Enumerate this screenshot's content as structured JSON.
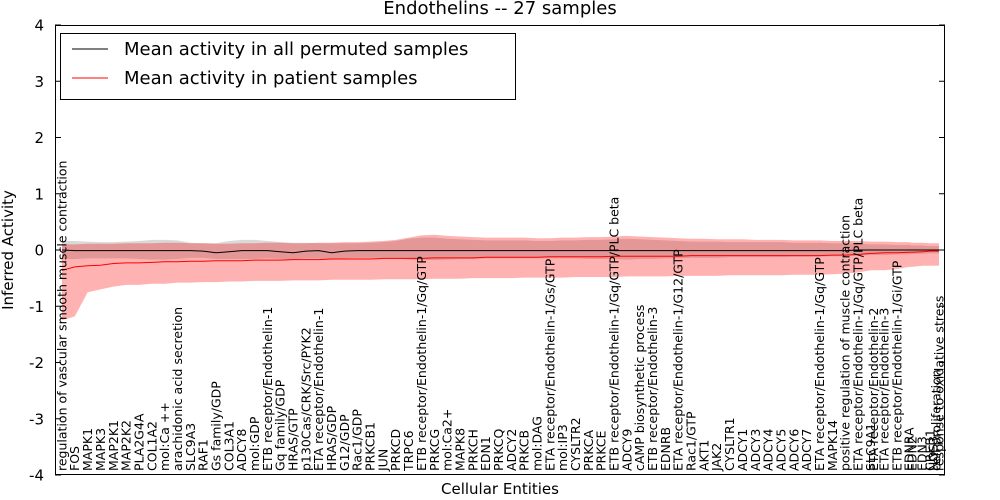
{
  "chart_data": {
    "type": "line",
    "title": "Endothelins -- 27 samples",
    "xlabel": "Cellular Entities",
    "ylabel": "Inferred Activity",
    "ylim": [
      -4,
      4
    ],
    "yticks": [
      4,
      3,
      2,
      1,
      0,
      -1,
      -2,
      -3,
      -4
    ],
    "grid": false,
    "legend": "upper-left",
    "categories": [
      "regulation of vascular smooth muscle contraction",
      "FOS",
      "MAPK1",
      "MAPK3",
      "MAP2K1",
      "MAP2K2",
      "PLA2G4A",
      "COL1A2",
      "mol:Ca ++",
      "arachidonic acid secretion",
      "SLC9A3",
      "RAF1",
      "Gs family/GDP",
      "COL3A1",
      "ADCY8",
      "mol:GDP",
      "ETB receptor/Endothelin-1",
      "Gq family/GDP",
      "HRAS/GTP",
      "p130Cas/CRK/Src/PYK2",
      "ETA receptor/Endothelin-1",
      "HRAS/GDP",
      "G12/GDP",
      "Rac1/GDP",
      "PRKCB1",
      "JUN",
      "PRKCD",
      "TRPC6",
      "ETB receptor/Endothelin-1/Gq/GTP",
      "PRKCG",
      "mol:Ca2+",
      "MAPK8",
      "PRKCH",
      "EDN1",
      "PRKCQ",
      "ADCY2",
      "PRKCB",
      "mol:DAG",
      "ETA receptor/Endothelin-1/Gs/GTP",
      "mol:IP3",
      "CYSLTR2",
      "PRKCA",
      "PRKCE",
      "ETB receptor/Endothelin-1/Gq/GTP/PLC beta",
      "ADCY9",
      "cAMP biosynthetic process",
      "ETB receptor/Endothelin-3",
      "EDNRB",
      "ETA receptor/Endothelin-1/G12/GTP",
      "Rac1/GTP",
      "AKT1",
      "JAK2",
      "CYSLTR1",
      "ADCY1",
      "ADCY3",
      "ADCY4",
      "ADCY5",
      "ADCY6",
      "ADCY7",
      "ETA receptor/Endothelin-1/Gq/GTP",
      "MAPK14",
      "positive regulation of muscle contraction",
      "ETA receptor/Endothelin-1/Gq/GTP/PLC beta",
      "SLC9A1",
      "ETA receptor/Endothelin-2",
      "ETA receptor/Endothelin-3",
      "ETB receptor/Endothelin-1/Gi/GTP",
      "EDNRA",
      "EDN2",
      "EDN3",
      "CREB1",
      "NOS3",
      "cell proliferation",
      "response to oxidative stress"
    ],
    "series": [
      {
        "name": "Mean activity in all permuted samples",
        "color": "#000000",
        "values": [
          0.0,
          -0.01,
          -0.01,
          -0.01,
          -0.01,
          -0.01,
          -0.01,
          -0.01,
          -0.01,
          -0.01,
          -0.01,
          -0.02,
          -0.05,
          -0.03,
          -0.01,
          -0.01,
          -0.01,
          -0.03,
          -0.05,
          -0.02,
          -0.01,
          -0.05,
          -0.02,
          -0.01,
          -0.01,
          -0.01,
          -0.01,
          -0.01,
          -0.01,
          -0.01,
          -0.01,
          -0.01,
          -0.01,
          -0.01,
          -0.01,
          -0.01,
          -0.01,
          -0.01,
          -0.01,
          -0.01,
          -0.01,
          -0.01,
          -0.01,
          -0.01,
          -0.01,
          -0.01,
          -0.01,
          -0.01,
          -0.01,
          -0.01,
          -0.01,
          -0.01,
          -0.01,
          -0.01,
          -0.01,
          -0.01,
          -0.01,
          -0.01,
          -0.01,
          -0.01,
          -0.01,
          -0.01,
          0.0,
          0.0,
          0.0,
          0.0,
          0.0,
          0.0,
          0.0,
          0.0,
          0.0,
          0.0,
          0.0,
          0.0
        ],
        "upper": [
          0.16,
          0.16,
          0.15,
          0.14,
          0.14,
          0.15,
          0.16,
          0.18,
          0.18,
          0.17,
          0.13,
          0.12,
          0.12,
          0.16,
          0.18,
          0.18,
          0.16,
          0.14,
          0.13,
          0.13,
          0.12,
          0.12,
          0.12,
          0.12,
          0.13,
          0.14,
          0.16,
          0.2,
          0.22,
          0.22,
          0.2,
          0.19,
          0.18,
          0.17,
          0.17,
          0.17,
          0.17,
          0.16,
          0.16,
          0.17,
          0.17,
          0.18,
          0.18,
          0.19,
          0.2,
          0.19,
          0.18,
          0.17,
          0.16,
          0.15,
          0.15,
          0.15,
          0.14,
          0.14,
          0.14,
          0.14,
          0.14,
          0.13,
          0.13,
          0.13,
          0.12,
          0.12,
          0.11,
          0.1,
          0.1,
          0.1,
          0.09,
          0.09,
          0.08,
          0.08,
          0.07,
          0.07,
          0.07,
          0.07
        ],
        "lower": [
          -0.16,
          -0.16,
          -0.15,
          -0.15,
          -0.15,
          -0.15,
          -0.16,
          -0.17,
          -0.17,
          -0.16,
          -0.14,
          -0.14,
          -0.16,
          -0.16,
          -0.16,
          -0.16,
          -0.15,
          -0.16,
          -0.17,
          -0.15,
          -0.15,
          -0.17,
          -0.15,
          -0.14,
          -0.14,
          -0.14,
          -0.15,
          -0.17,
          -0.18,
          -0.18,
          -0.17,
          -0.16,
          -0.16,
          -0.15,
          -0.15,
          -0.15,
          -0.15,
          -0.15,
          -0.15,
          -0.15,
          -0.15,
          -0.16,
          -0.16,
          -0.16,
          -0.17,
          -0.16,
          -0.16,
          -0.15,
          -0.15,
          -0.14,
          -0.14,
          -0.14,
          -0.13,
          -0.13,
          -0.13,
          -0.13,
          -0.13,
          -0.12,
          -0.12,
          -0.12,
          -0.11,
          -0.11,
          -0.1,
          -0.09,
          -0.09,
          -0.09,
          -0.08,
          -0.08,
          -0.07,
          -0.07,
          -0.06,
          -0.06,
          -0.06,
          -0.06
        ]
      },
      {
        "name": "Mean activity in patient samples",
        "color": "#ff0000",
        "values": [
          -0.36,
          -0.3,
          -0.28,
          -0.27,
          -0.24,
          -0.23,
          -0.23,
          -0.22,
          -0.21,
          -0.21,
          -0.2,
          -0.2,
          -0.19,
          -0.19,
          -0.19,
          -0.18,
          -0.18,
          -0.18,
          -0.17,
          -0.17,
          -0.17,
          -0.16,
          -0.16,
          -0.16,
          -0.16,
          -0.15,
          -0.15,
          -0.15,
          -0.15,
          -0.14,
          -0.14,
          -0.14,
          -0.14,
          -0.13,
          -0.13,
          -0.13,
          -0.13,
          -0.13,
          -0.12,
          -0.12,
          -0.12,
          -0.12,
          -0.12,
          -0.11,
          -0.11,
          -0.11,
          -0.11,
          -0.11,
          -0.11,
          -0.1,
          -0.1,
          -0.1,
          -0.1,
          -0.1,
          -0.1,
          -0.1,
          -0.1,
          -0.1,
          -0.1,
          -0.1,
          -0.09,
          -0.09,
          -0.08,
          -0.06,
          -0.06,
          -0.05,
          -0.05,
          -0.04,
          -0.04,
          -0.03,
          -0.02,
          -0.02,
          -0.02,
          -0.02
        ],
        "upper": [
          0.1,
          0.1,
          0.11,
          0.11,
          0.11,
          0.12,
          0.12,
          0.12,
          0.13,
          0.13,
          0.12,
          0.12,
          0.11,
          0.11,
          0.12,
          0.12,
          0.13,
          0.13,
          0.12,
          0.12,
          0.13,
          0.13,
          0.14,
          0.14,
          0.15,
          0.16,
          0.18,
          0.22,
          0.26,
          0.27,
          0.25,
          0.24,
          0.23,
          0.22,
          0.22,
          0.22,
          0.22,
          0.21,
          0.21,
          0.22,
          0.22,
          0.23,
          0.23,
          0.24,
          0.25,
          0.24,
          0.23,
          0.22,
          0.21,
          0.2,
          0.2,
          0.19,
          0.19,
          0.19,
          0.18,
          0.18,
          0.18,
          0.17,
          0.17,
          0.17,
          0.16,
          0.16,
          0.16,
          0.15,
          0.15,
          0.15,
          0.14,
          0.14,
          0.13,
          0.13,
          0.12,
          0.12,
          0.12,
          0.12
        ],
        "lower": [
          -1.25,
          -1.18,
          -0.75,
          -0.7,
          -0.65,
          -0.62,
          -0.62,
          -0.6,
          -0.6,
          -0.58,
          -0.58,
          -0.57,
          -0.57,
          -0.56,
          -0.56,
          -0.55,
          -0.55,
          -0.55,
          -0.54,
          -0.54,
          -0.54,
          -0.53,
          -0.53,
          -0.53,
          -0.53,
          -0.52,
          -0.52,
          -0.52,
          -0.52,
          -0.51,
          -0.51,
          -0.51,
          -0.5,
          -0.5,
          -0.5,
          -0.5,
          -0.49,
          -0.49,
          -0.49,
          -0.49,
          -0.48,
          -0.48,
          -0.48,
          -0.48,
          -0.47,
          -0.47,
          -0.47,
          -0.47,
          -0.46,
          -0.46,
          -0.46,
          -0.46,
          -0.45,
          -0.45,
          -0.45,
          -0.45,
          -0.45,
          -0.44,
          -0.44,
          -0.44,
          -0.43,
          -0.42,
          -0.4,
          -0.36,
          -0.36,
          -0.36,
          -0.34,
          -0.3,
          -0.3,
          -0.28,
          -0.28,
          -0.28,
          -0.28,
          -0.28
        ]
      }
    ]
  }
}
